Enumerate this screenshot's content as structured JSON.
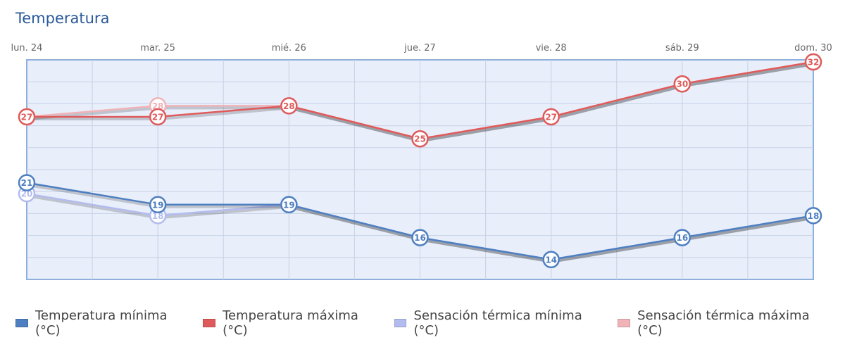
{
  "chart_data": {
    "type": "line",
    "title": "Temperatura",
    "categories": [
      "lun. 24",
      "mar. 25",
      "mié. 26",
      "jue. 27",
      "vie. 28",
      "sáb. 29",
      "dom. 30"
    ],
    "ylim": [
      12,
      32
    ],
    "grid": true,
    "legend_position": "bottom",
    "series": [
      {
        "name": "Sensación térmica mínima (°C)",
        "color": "#b3bcef",
        "values": [
          20,
          18,
          19,
          16,
          14,
          16,
          18
        ]
      },
      {
        "name": "Sensación térmica máxima (°C)",
        "color": "#efb3b8",
        "values": [
          27,
          28,
          28,
          25,
          27,
          30,
          32
        ]
      },
      {
        "name": "Temperatura mínima (°C)",
        "color": "#4e7fc0",
        "values": [
          21,
          19,
          19,
          16,
          14,
          16,
          18
        ]
      },
      {
        "name": "Temperatura máxima (°C)",
        "color": "#df5a5a",
        "values": [
          27,
          27,
          28,
          25,
          27,
          30,
          32
        ]
      }
    ],
    "legend_order": [
      2,
      3,
      0,
      1
    ]
  }
}
